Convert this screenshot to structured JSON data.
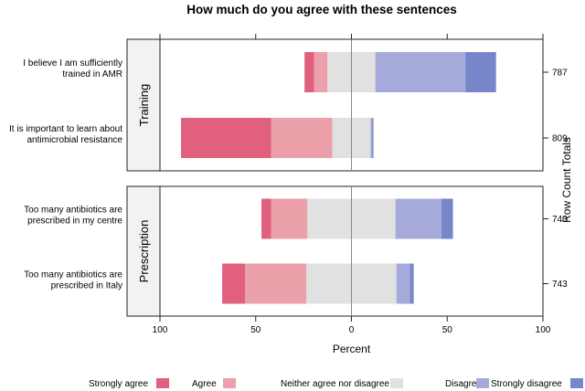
{
  "chart_data": {
    "type": "bar",
    "subtype": "diverging-stacked-likert",
    "title": "How much do you agree with these sentences",
    "xlabel": "Percent",
    "right_axis_label": "Row Count Totals",
    "xlim": [
      -100,
      100
    ],
    "x_ticks": [
      -100,
      -50,
      0,
      50,
      100
    ],
    "x_tick_labels": [
      "100",
      "50",
      "0",
      "50",
      "100"
    ],
    "legend": {
      "position": "bottom",
      "entries": [
        {
          "name": "Strongly agree",
          "color": "#e0607e"
        },
        {
          "name": "Agree",
          "color": "#eba0aa"
        },
        {
          "name": "Neither agree nor disagree",
          "color": "#e1e1e1"
        },
        {
          "name": "Disagree",
          "color": "#a6aadb"
        },
        {
          "name": "Strongly disagree",
          "color": "#7686c9"
        }
      ]
    },
    "panels": [
      {
        "name": "Training",
        "rows": [
          {
            "label": [
              "I believe I am sufficiently",
              "trained in AMR"
            ],
            "total": "787",
            "values": {
              "Strongly agree": 5,
              "Agree": 7,
              "Neither agree nor disagree": 25,
              "Disagree": 47,
              "Strongly disagree": 16
            }
          },
          {
            "label": [
              "It is important to learn about",
              "antimicrobial resistance"
            ],
            "total": "809",
            "values": {
              "Strongly agree": 47,
              "Agree": 32,
              "Neither agree nor disagree": 20,
              "Disagree": 0.8,
              "Strongly disagree": 0.7
            }
          }
        ]
      },
      {
        "name": "Prescription",
        "rows": [
          {
            "label": [
              "Too many antibiotics are",
              "prescribed in my centre"
            ],
            "total": "743",
            "values": {
              "Strongly agree": 5,
              "Agree": 19,
              "Neither agree nor disagree": 46,
              "Disagree": 24,
              "Strongly disagree": 6
            }
          },
          {
            "label": [
              "Too many antibiotics are",
              "prescribed in Italy"
            ],
            "total": "743",
            "values": {
              "Strongly agree": 12,
              "Agree": 32,
              "Neither agree nor disagree": 47,
              "Disagree": 7,
              "Strongly disagree": 2
            }
          }
        ]
      }
    ]
  }
}
